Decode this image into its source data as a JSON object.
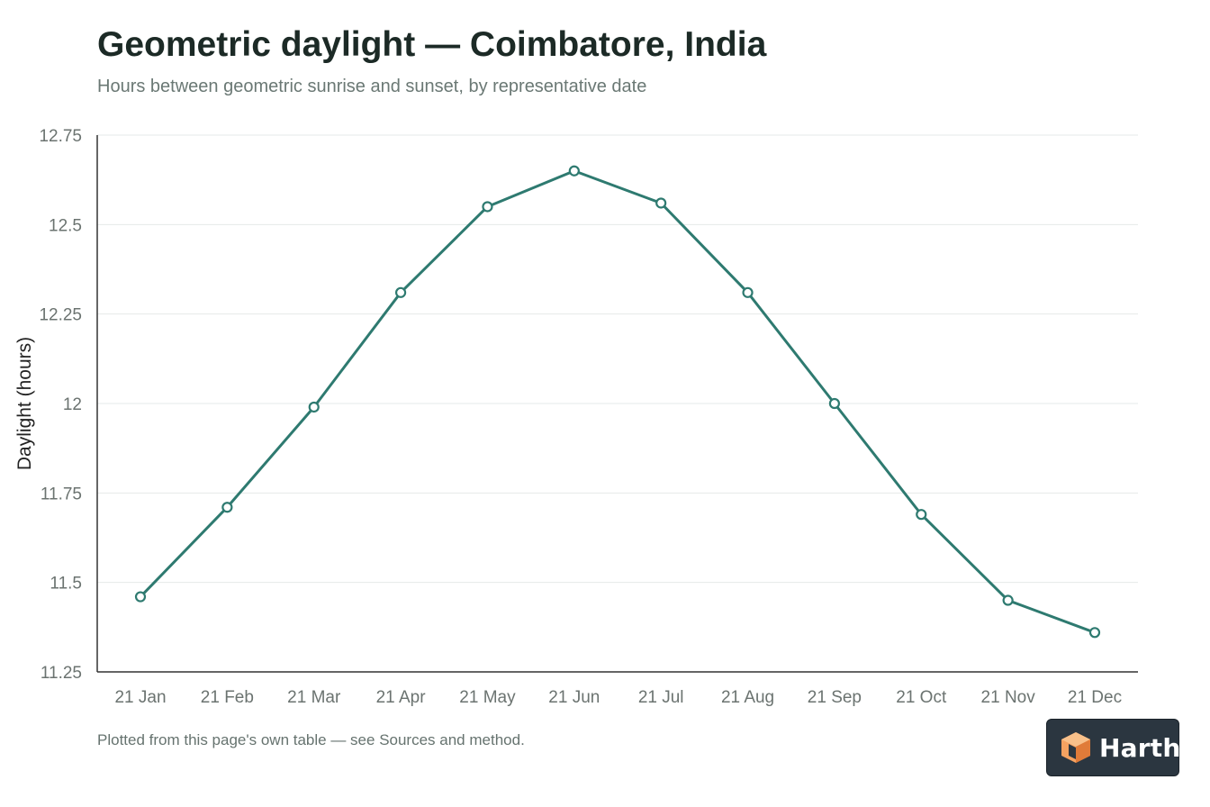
{
  "header": {
    "title": "Geometric daylight — Coimbatore, India",
    "subtitle": "Hours between geometric sunrise and sunset, by representative date"
  },
  "footer": {
    "note": "Plotted from this page's own table — see Sources and method."
  },
  "logo": {
    "text": "Harth",
    "icon": "cube-logo-icon"
  },
  "colors": {
    "line": "#2e7a70",
    "grid": "#e6e9e8",
    "axis": "#333333",
    "tick_text": "#6b7370"
  },
  "chart_data": {
    "type": "line",
    "title": "Geometric daylight — Coimbatore, India",
    "subtitle": "Hours between geometric sunrise and sunset, by representative date",
    "xlabel": "",
    "ylabel": "Daylight (hours)",
    "categories": [
      "21 Jan",
      "21 Feb",
      "21 Mar",
      "21 Apr",
      "21 May",
      "21 Jun",
      "21 Jul",
      "21 Aug",
      "21 Sep",
      "21 Oct",
      "21 Nov",
      "21 Dec"
    ],
    "values": [
      11.46,
      11.71,
      11.99,
      12.31,
      12.55,
      12.65,
      12.56,
      12.31,
      12.0,
      11.69,
      11.45,
      11.36
    ],
    "ylim": [
      11.25,
      12.75
    ],
    "yticks": [
      11.25,
      11.5,
      11.75,
      12,
      12.25,
      12.5,
      12.75
    ],
    "ytick_labels": [
      "11.25",
      "11.5",
      "11.75",
      "12",
      "12.25",
      "12.5",
      "12.75"
    ],
    "grid": true,
    "markers": "open-circle"
  }
}
